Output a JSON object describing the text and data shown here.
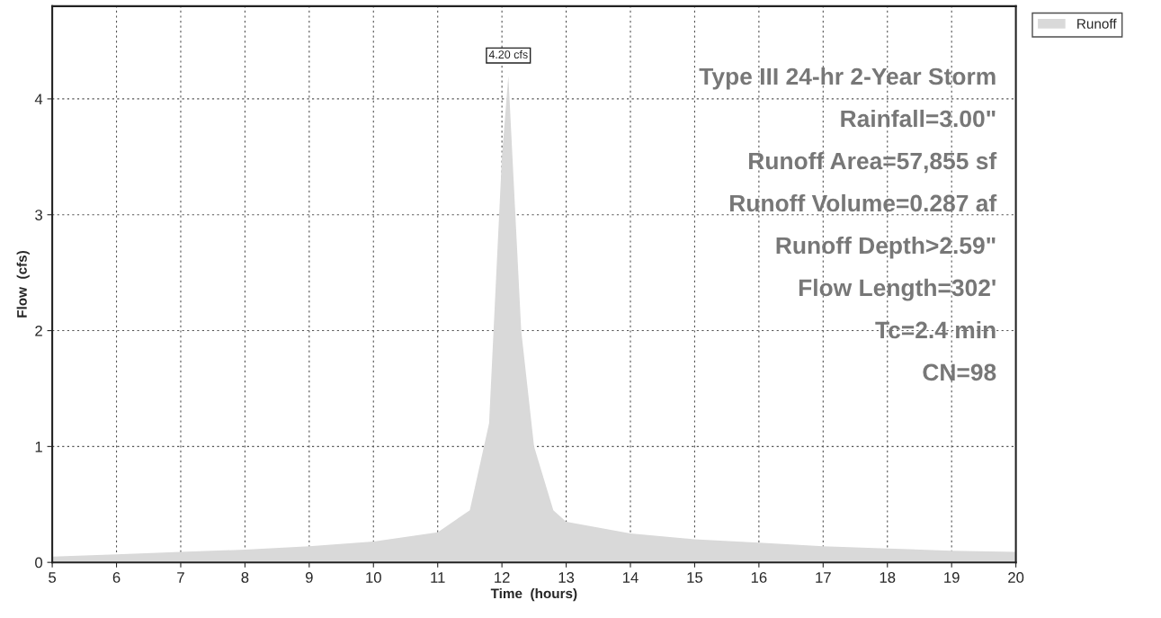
{
  "chart_data": {
    "type": "area",
    "xlabel": "Time  (hours)",
    "ylabel": "Flow  (cfs)",
    "x": [
      5,
      6,
      7,
      8,
      9,
      10,
      11,
      11.5,
      11.8,
      12.0,
      12.1,
      12.3,
      12.5,
      12.8,
      13,
      14,
      15,
      16,
      17,
      18,
      19,
      20
    ],
    "series": [
      {
        "name": "Runoff",
        "color": "#d9d9d9",
        "values": [
          0.05,
          0.07,
          0.09,
          0.11,
          0.14,
          0.18,
          0.26,
          0.45,
          1.2,
          3.5,
          4.2,
          2.0,
          1.0,
          0.45,
          0.35,
          0.25,
          0.2,
          0.17,
          0.14,
          0.12,
          0.1,
          0.09
        ]
      }
    ],
    "xlim": [
      5,
      20
    ],
    "ylim": [
      0,
      4.8
    ],
    "xticks": [
      5,
      6,
      7,
      8,
      9,
      10,
      11,
      12,
      13,
      14,
      15,
      16,
      17,
      18,
      19,
      20
    ],
    "yticks": [
      0,
      1,
      2,
      3,
      4
    ],
    "grid": true,
    "legend": "top right",
    "annotations": [
      {
        "text": "4.20 cfs",
        "x": 12.1,
        "y": 4.2
      },
      "Type III 24-hr 2-Year Storm",
      "Rainfall=3.00\"",
      "Runoff Area=57,855 sf",
      "Runoff Volume=0.287 af",
      "Runoff Depth>2.59\"",
      "Flow Length=302'",
      "Tc=2.4 min",
      "CN=98"
    ]
  }
}
